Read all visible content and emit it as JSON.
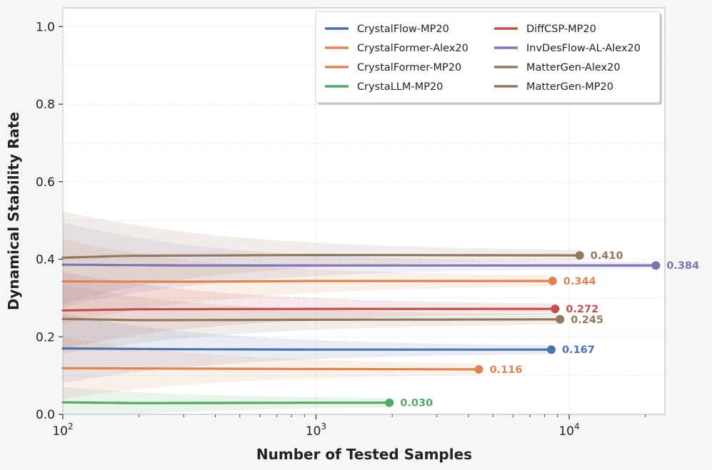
{
  "chart_data": {
    "type": "line",
    "xscale": "log",
    "xlabel": "Number of Tested Samples",
    "ylabel": "Dynamical Stability Rate",
    "xlim": [
      100,
      24000
    ],
    "ylim": [
      0,
      1.05
    ],
    "yticks": [
      "0.0",
      "0.2",
      "0.4",
      "0.6",
      "0.8",
      "1.0"
    ],
    "ytick_values": [
      0.0,
      0.2,
      0.4,
      0.6,
      0.8,
      1.0
    ],
    "xticks": [
      {
        "value": 100,
        "base": "10",
        "exp": "2"
      },
      {
        "value": 1000,
        "base": "10",
        "exp": "3"
      },
      {
        "value": 10000,
        "base": "10",
        "exp": "4"
      }
    ],
    "grid": true,
    "legend_position": "top-right",
    "series": [
      {
        "name": "CrystalFlow-MP20",
        "color": "#4c72b0",
        "end_x": 8500,
        "final": 0.167,
        "label": "0.167",
        "points": [
          [
            100,
            0.17
          ],
          [
            300,
            0.168
          ],
          [
            1000,
            0.167
          ],
          [
            8500,
            0.167
          ]
        ],
        "band_start": 0.09,
        "band_end": 0.008
      },
      {
        "name": "CrystalFormer-Alex20",
        "color": "#dd8452",
        "end_x": 8600,
        "final": 0.344,
        "label": "0.344",
        "points": [
          [
            100,
            0.343
          ],
          [
            300,
            0.342
          ],
          [
            1000,
            0.344
          ],
          [
            8600,
            0.344
          ]
        ],
        "band_start": 0.11,
        "band_end": 0.01
      },
      {
        "name": "CrystalFormer-MP20",
        "color": "#dd8452",
        "end_x": 4400,
        "final": 0.116,
        "label": "0.116",
        "points": [
          [
            100,
            0.119
          ],
          [
            300,
            0.118
          ],
          [
            1000,
            0.117
          ],
          [
            4400,
            0.116
          ]
        ],
        "band_start": 0.08,
        "band_end": 0.01
      },
      {
        "name": "CrystaLLM-MP20",
        "color": "#55a868",
        "end_x": 1950,
        "final": 0.03,
        "label": "0.030",
        "points": [
          [
            100,
            0.031
          ],
          [
            200,
            0.029
          ],
          [
            1000,
            0.03
          ],
          [
            1950,
            0.03
          ]
        ],
        "band_start": 0.04,
        "band_end": 0.008
      },
      {
        "name": "DiffCSP-MP20",
        "color": "#c44e52",
        "end_x": 8800,
        "final": 0.272,
        "label": "0.272",
        "points": [
          [
            100,
            0.268
          ],
          [
            200,
            0.271
          ],
          [
            1000,
            0.272
          ],
          [
            8800,
            0.272
          ]
        ],
        "band_start": 0.1,
        "band_end": 0.01
      },
      {
        "name": "InvDesFlow-AL-Alex20",
        "color": "#8172b3",
        "end_x": 22000,
        "final": 0.384,
        "label": "0.384",
        "points": [
          [
            100,
            0.386
          ],
          [
            300,
            0.384
          ],
          [
            1000,
            0.384
          ],
          [
            22000,
            0.384
          ]
        ],
        "band_start": 0.11,
        "band_end": 0.006
      },
      {
        "name": "MatterGen-Alex20",
        "color": "#937860",
        "end_x": 11000,
        "final": 0.41,
        "label": "0.410",
        "points": [
          [
            100,
            0.404
          ],
          [
            180,
            0.409
          ],
          [
            1000,
            0.411
          ],
          [
            11000,
            0.41
          ]
        ],
        "band_start": 0.12,
        "band_end": 0.01
      },
      {
        "name": "MatterGen-MP20",
        "color": "#937860",
        "end_x": 9200,
        "final": 0.245,
        "label": "0.245",
        "points": [
          [
            100,
            0.246
          ],
          [
            200,
            0.243
          ],
          [
            1000,
            0.244
          ],
          [
            9200,
            0.245
          ]
        ],
        "band_start": 0.09,
        "band_end": 0.01
      }
    ],
    "legend_order": [
      "CrystalFlow-MP20",
      "CrystalFormer-Alex20",
      "CrystalFormer-MP20",
      "CrystaLLM-MP20",
      "DiffCSP-MP20",
      "InvDesFlow-AL-Alex20",
      "MatterGen-Alex20",
      "MatterGen-MP20"
    ]
  }
}
